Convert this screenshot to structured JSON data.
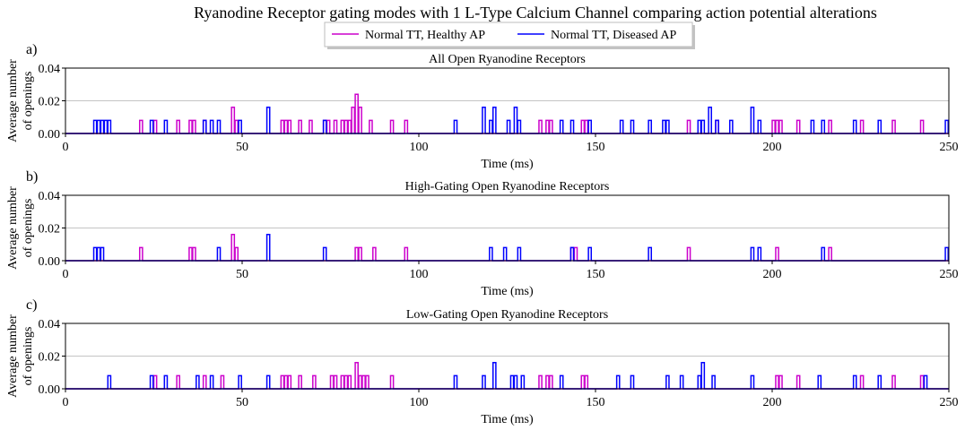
{
  "title": "Ryanodine Receptor gating modes with 1 L-Type Calcium Channel comparing action potential alterations",
  "legend": [
    {
      "label": "Normal TT, Healthy AP",
      "color": "#cc00cc"
    },
    {
      "label": "Normal TT, Diseased AP",
      "color": "#0000ff"
    }
  ],
  "chart_data": [
    {
      "type": "line",
      "panel": "a)",
      "title": "All Open Ryanodine Receptors",
      "xlabel": "Time (ms)",
      "ylabel": [
        "Average number",
        "of openings"
      ],
      "xlim": [
        0,
        250
      ],
      "ylim": [
        0,
        0.04
      ],
      "xticks": [
        "0",
        "50",
        "100",
        "150",
        "200",
        "250"
      ],
      "yticks": [
        "0.00",
        "0.02",
        "0.04"
      ],
      "grid": "horizontal",
      "series": [
        {
          "name": "Normal TT, Healthy AP",
          "color": "#cc00cc",
          "events": [
            [
              21,
              0.008
            ],
            [
              25,
              0.008
            ],
            [
              31.5,
              0.008
            ],
            [
              35,
              0.008
            ],
            [
              36,
              0.008
            ],
            [
              39,
              0.008
            ],
            [
              47,
              0.016
            ],
            [
              48,
              0.008
            ],
            [
              61,
              0.008
            ],
            [
              62,
              0.008
            ],
            [
              63,
              0.008
            ],
            [
              66,
              0.008
            ],
            [
              69,
              0.008
            ],
            [
              73,
              0.008
            ],
            [
              74,
              0.008
            ],
            [
              76,
              0.008
            ],
            [
              78,
              0.008
            ],
            [
              79,
              0.008
            ],
            [
              80,
              0.008
            ],
            [
              81,
              0.016
            ],
            [
              82,
              0.024
            ],
            [
              83,
              0.016
            ],
            [
              86,
              0.008
            ],
            [
              92,
              0.008
            ],
            [
              96,
              0.008
            ],
            [
              134,
              0.008
            ],
            [
              136,
              0.008
            ],
            [
              137,
              0.008
            ],
            [
              146,
              0.008
            ],
            [
              147,
              0.008
            ],
            [
              176,
              0.008
            ],
            [
              184,
              0.008
            ],
            [
              200,
              0.008
            ],
            [
              201,
              0.008
            ],
            [
              202,
              0.008
            ],
            [
              207,
              0.008
            ],
            [
              216,
              0.008
            ],
            [
              225,
              0.008
            ],
            [
              234,
              0.008
            ],
            [
              242,
              0.008
            ]
          ]
        },
        {
          "name": "Normal TT, Diseased AP",
          "color": "#0000ff",
          "events": [
            [
              8,
              0.008
            ],
            [
              9,
              0.008
            ],
            [
              10,
              0.008
            ],
            [
              11,
              0.008
            ],
            [
              12,
              0.008
            ],
            [
              24,
              0.008
            ],
            [
              28,
              0.008
            ],
            [
              39,
              0.008
            ],
            [
              41,
              0.008
            ],
            [
              43,
              0.008
            ],
            [
              49,
              0.008
            ],
            [
              57,
              0.016
            ],
            [
              73,
              0.008
            ],
            [
              110,
              0.008
            ],
            [
              118,
              0.016
            ],
            [
              120,
              0.008
            ],
            [
              121,
              0.016
            ],
            [
              125,
              0.008
            ],
            [
              127,
              0.016
            ],
            [
              128,
              0.008
            ],
            [
              140,
              0.008
            ],
            [
              143,
              0.008
            ],
            [
              148,
              0.008
            ],
            [
              157,
              0.008
            ],
            [
              160,
              0.008
            ],
            [
              165,
              0.008
            ],
            [
              169,
              0.008
            ],
            [
              170,
              0.008
            ],
            [
              179,
              0.008
            ],
            [
              180,
              0.008
            ],
            [
              182,
              0.016
            ],
            [
              184,
              0.008
            ],
            [
              188,
              0.008
            ],
            [
              194,
              0.016
            ],
            [
              196,
              0.008
            ],
            [
              211,
              0.008
            ],
            [
              214,
              0.008
            ],
            [
              223,
              0.008
            ],
            [
              230,
              0.008
            ],
            [
              249,
              0.008
            ]
          ]
        }
      ]
    },
    {
      "type": "line",
      "panel": "b)",
      "title": "High-Gating Open Ryanodine Receptors",
      "xlabel": "Time (ms)",
      "ylabel": [
        "Average number",
        "of openings"
      ],
      "xlim": [
        0,
        250
      ],
      "ylim": [
        0,
        0.04
      ],
      "xticks": [
        "0",
        "50",
        "100",
        "150",
        "200",
        "250"
      ],
      "yticks": [
        "0.00",
        "0.02",
        "0.04"
      ],
      "grid": "horizontal",
      "series": [
        {
          "name": "Normal TT, Healthy AP",
          "color": "#cc00cc",
          "events": [
            [
              21,
              0.008
            ],
            [
              35,
              0.008
            ],
            [
              36,
              0.008
            ],
            [
              47,
              0.016
            ],
            [
              48,
              0.008
            ],
            [
              82,
              0.008
            ],
            [
              83,
              0.008
            ],
            [
              87,
              0.008
            ],
            [
              96,
              0.008
            ],
            [
              143,
              0.008
            ],
            [
              144,
              0.008
            ],
            [
              176,
              0.008
            ],
            [
              201,
              0.008
            ],
            [
              216,
              0.008
            ]
          ]
        },
        {
          "name": "Normal TT, Diseased AP",
          "color": "#0000ff",
          "events": [
            [
              8,
              0.008
            ],
            [
              9,
              0.008
            ],
            [
              10,
              0.008
            ],
            [
              43,
              0.008
            ],
            [
              57,
              0.016
            ],
            [
              73,
              0.008
            ],
            [
              120,
              0.008
            ],
            [
              124,
              0.008
            ],
            [
              128,
              0.008
            ],
            [
              143,
              0.008
            ],
            [
              148,
              0.008
            ],
            [
              165,
              0.008
            ],
            [
              194,
              0.008
            ],
            [
              196,
              0.008
            ],
            [
              214,
              0.008
            ],
            [
              249,
              0.008
            ]
          ]
        }
      ]
    },
    {
      "type": "line",
      "panel": "c)",
      "title": "Low-Gating Open Ryanodine Receptors",
      "xlabel": "Time (ms)",
      "ylabel": [
        "Average number",
        "of openings"
      ],
      "xlim": [
        0,
        250
      ],
      "ylim": [
        0,
        0.04
      ],
      "xticks": [
        "0",
        "50",
        "100",
        "150",
        "200",
        "250"
      ],
      "yticks": [
        "0.00",
        "0.02",
        "0.04"
      ],
      "grid": "horizontal",
      "series": [
        {
          "name": "Normal TT, Healthy AP",
          "color": "#cc00cc",
          "events": [
            [
              25,
              0.008
            ],
            [
              31.5,
              0.008
            ],
            [
              39,
              0.008
            ],
            [
              44,
              0.008
            ],
            [
              61,
              0.008
            ],
            [
              62,
              0.008
            ],
            [
              63,
              0.008
            ],
            [
              66,
              0.008
            ],
            [
              70,
              0.008
            ],
            [
              75,
              0.008
            ],
            [
              76,
              0.008
            ],
            [
              78,
              0.008
            ],
            [
              79,
              0.008
            ],
            [
              80,
              0.008
            ],
            [
              82,
              0.016
            ],
            [
              83,
              0.008
            ],
            [
              84,
              0.008
            ],
            [
              85,
              0.008
            ],
            [
              92,
              0.008
            ],
            [
              134,
              0.008
            ],
            [
              136,
              0.008
            ],
            [
              137,
              0.008
            ],
            [
              146,
              0.008
            ],
            [
              147,
              0.008
            ],
            [
              201,
              0.008
            ],
            [
              202,
              0.008
            ],
            [
              207,
              0.008
            ],
            [
              225,
              0.008
            ],
            [
              234,
              0.008
            ],
            [
              242,
              0.008
            ]
          ]
        },
        {
          "name": "Normal TT, Diseased AP",
          "color": "#0000ff",
          "events": [
            [
              12,
              0.008
            ],
            [
              24,
              0.008
            ],
            [
              28,
              0.008
            ],
            [
              37,
              0.008
            ],
            [
              41,
              0.008
            ],
            [
              49,
              0.008
            ],
            [
              57,
              0.008
            ],
            [
              110,
              0.008
            ],
            [
              118,
              0.008
            ],
            [
              121,
              0.016
            ],
            [
              126,
              0.008
            ],
            [
              127,
              0.008
            ],
            [
              129,
              0.008
            ],
            [
              140,
              0.008
            ],
            [
              156,
              0.008
            ],
            [
              160,
              0.008
            ],
            [
              170,
              0.008
            ],
            [
              174,
              0.008
            ],
            [
              179,
              0.008
            ],
            [
              180,
              0.016
            ],
            [
              183,
              0.008
            ],
            [
              194,
              0.008
            ],
            [
              213,
              0.008
            ],
            [
              223,
              0.008
            ],
            [
              230,
              0.008
            ],
            [
              243,
              0.008
            ]
          ]
        }
      ]
    }
  ]
}
